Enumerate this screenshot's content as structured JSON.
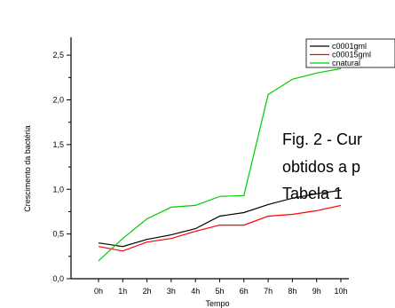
{
  "chart_data": {
    "type": "line",
    "xlabel": "Tempo",
    "ylabel": "Crescimento da bactéria",
    "categories": [
      "0h",
      "1h",
      "2h",
      "3h",
      "4h",
      "5h",
      "6h",
      "7h",
      "8h",
      "9h",
      "10h"
    ],
    "ylim": [
      0,
      2.7
    ],
    "yticks": [
      "0,0",
      "0,5",
      "1,0",
      "1,5",
      "2,0",
      "2,5"
    ],
    "legend_position": "top-right",
    "grid": false,
    "series": [
      {
        "name": "c0001gml",
        "color": "#000000",
        "values": [
          0.4,
          0.36,
          0.44,
          0.49,
          0.56,
          0.7,
          0.74,
          0.83,
          0.9,
          0.95,
          0.99
        ]
      },
      {
        "name": "c00015gml",
        "color": "#ff0000",
        "values": [
          0.36,
          0.31,
          0.41,
          0.45,
          0.53,
          0.6,
          0.6,
          0.7,
          0.72,
          0.76,
          0.82
        ]
      },
      {
        "name": "cnatural",
        "color": "#00cc00",
        "values": [
          0.2,
          0.45,
          0.67,
          0.8,
          0.82,
          0.92,
          0.93,
          2.06,
          2.23,
          2.3,
          2.35
        ]
      }
    ],
    "annotation": [
      "Fig. 2 - Cur",
      "obtidos a p",
      "Tabela 1"
    ]
  }
}
